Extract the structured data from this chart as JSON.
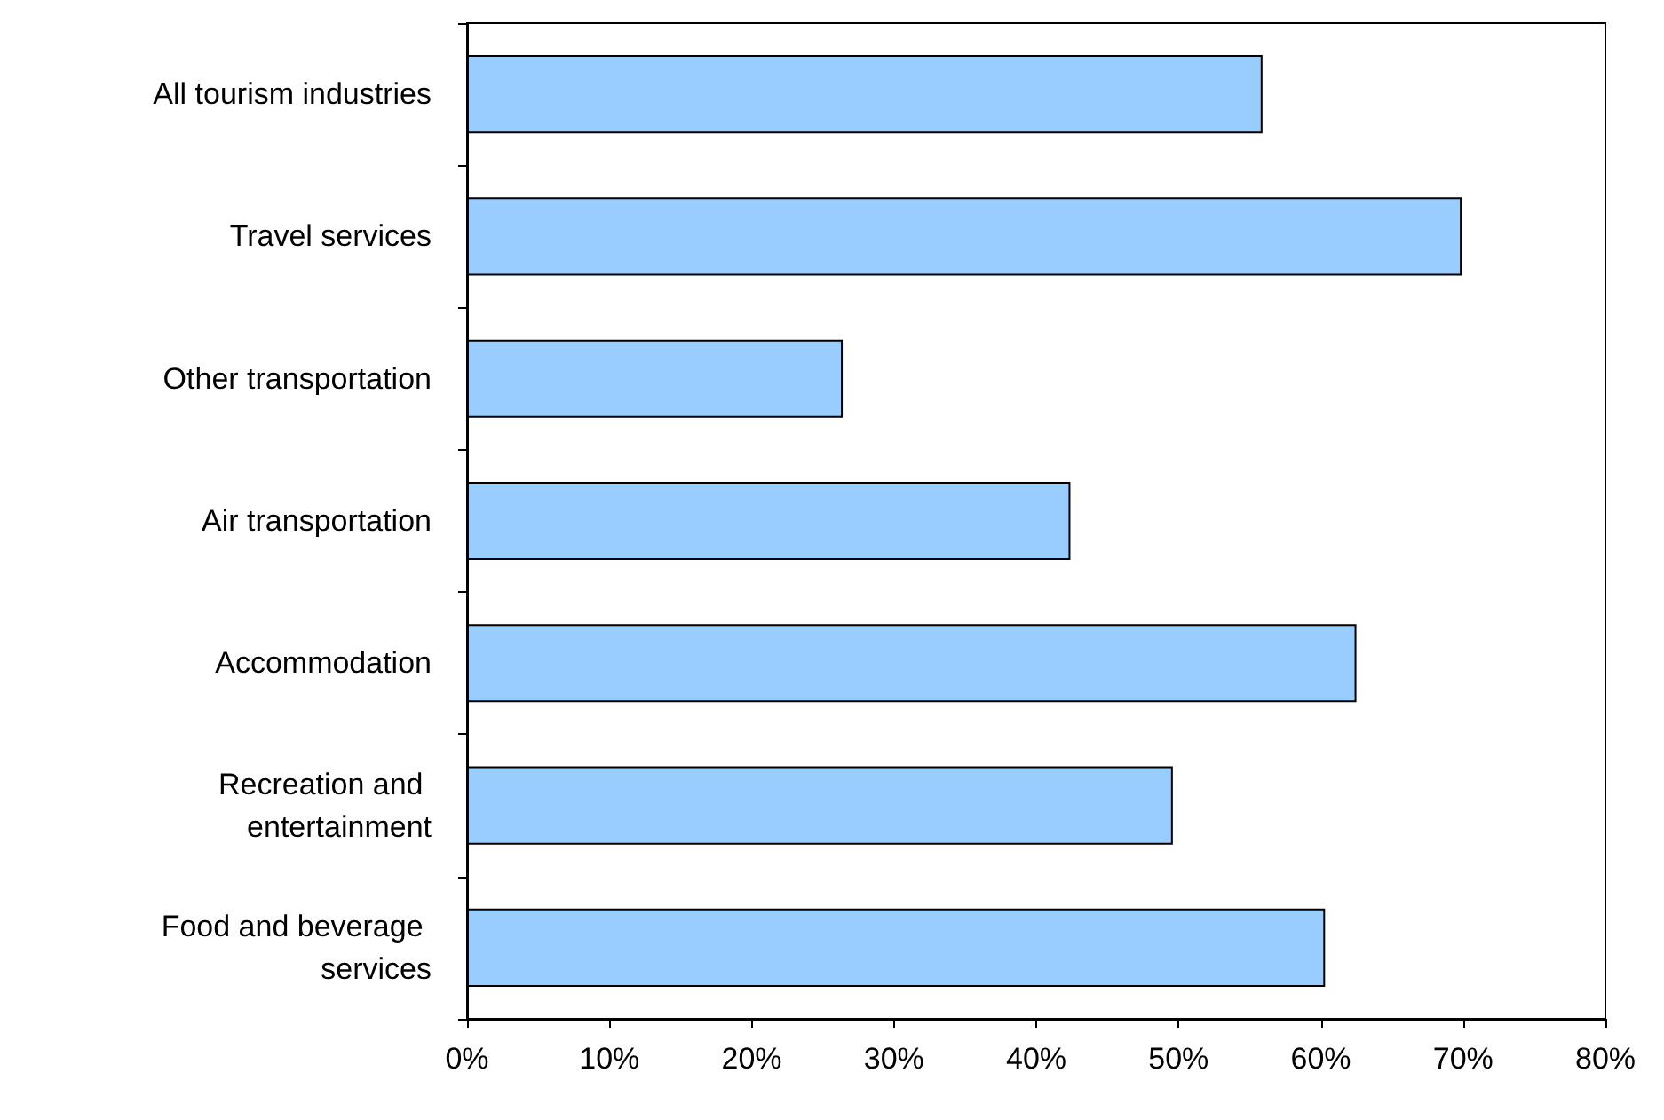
{
  "chart_data": {
    "type": "bar",
    "orientation": "horizontal",
    "categories": [
      "All tourism industries",
      "Travel services",
      "Other transportation",
      "Air transportation",
      "Accommodation",
      "Recreation and entertainment",
      "Food and beverage services"
    ],
    "values": [
      55.9,
      69.9,
      26.4,
      42.4,
      62.5,
      49.6,
      60.3
    ],
    "color": "#99ccff",
    "xlim": [
      0,
      80
    ],
    "xticks": [
      {
        "value": 0,
        "label": "0%"
      },
      {
        "value": 10,
        "label": "10%"
      },
      {
        "value": 20,
        "label": "20%"
      },
      {
        "value": 30,
        "label": "30%"
      },
      {
        "value": 40,
        "label": "40%"
      },
      {
        "value": 50,
        "label": "50%"
      },
      {
        "value": 60,
        "label": "60%"
      },
      {
        "value": 70,
        "label": "70%"
      },
      {
        "value": 80,
        "label": "80%"
      }
    ],
    "grid": false
  }
}
